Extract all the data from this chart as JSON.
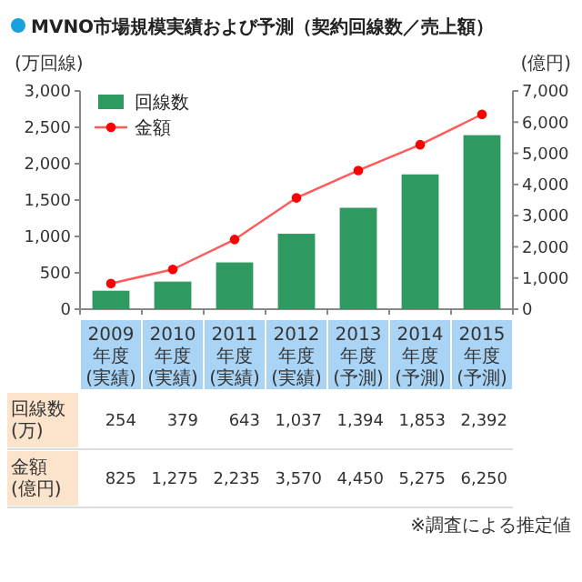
{
  "chart_data": {
    "type": "bar",
    "title": "MVNO市場規模実績および予測（契約回線数／売上額）",
    "ylabel": "(万回線)",
    "y2label": "(億円)",
    "categories": [
      "2009年度(実績)",
      "2010年度(実績)",
      "2011年度(実績)",
      "2012年度(実績)",
      "2013年度(予測)",
      "2014年度(予測)",
      "2015年度(予測)"
    ],
    "series": [
      {
        "name": "回線数",
        "color": "#2e9a62",
        "values": [
          254,
          379,
          643,
          1037,
          1394,
          1853,
          2392
        ],
        "value_labels": [
          "254",
          "379",
          "643",
          "1,037",
          "1,394",
          "1,853",
          "2,392"
        ]
      },
      {
        "name": "金額",
        "type": "line",
        "axis": "y2",
        "color": "#ff5a5a",
        "marker": "circle",
        "line_style": "solid",
        "values": [
          825,
          1275,
          2235,
          3570,
          4450,
          5275,
          6250
        ],
        "value_labels": [
          "825",
          "1,275",
          "2,235",
          "3,570",
          "4,450",
          "5,275",
          "6,250"
        ]
      }
    ],
    "ylim": [
      0,
      3000
    ],
    "yticks": [
      0,
      500,
      {
        "value": 1000,
        "label": "1,000"
      },
      {
        "value": 1500,
        "label": "1,500"
      },
      {
        "value": 2000,
        "label": "2,000"
      },
      {
        "value": 2500,
        "label": "2,500"
      },
      {
        "value": 3000,
        "label": "3,000"
      }
    ],
    "y2lim": [
      0,
      7000
    ],
    "y2ticks": [
      0,
      {
        "value": 1000,
        "label": "1,000"
      },
      {
        "value": 2000,
        "label": "2,000"
      },
      {
        "value": 3000,
        "label": "3,000"
      },
      {
        "value": 4000,
        "label": "4,000"
      },
      {
        "value": 5000,
        "label": "5,000"
      },
      {
        "value": 6000,
        "label": "6,000"
      },
      {
        "value": 7000,
        "label": "7,000"
      }
    ],
    "legend": "top left",
    "grid": false,
    "annotations": [
      "回線数(万)",
      "金額(億円)",
      "※調査による推定値"
    ]
  }
}
